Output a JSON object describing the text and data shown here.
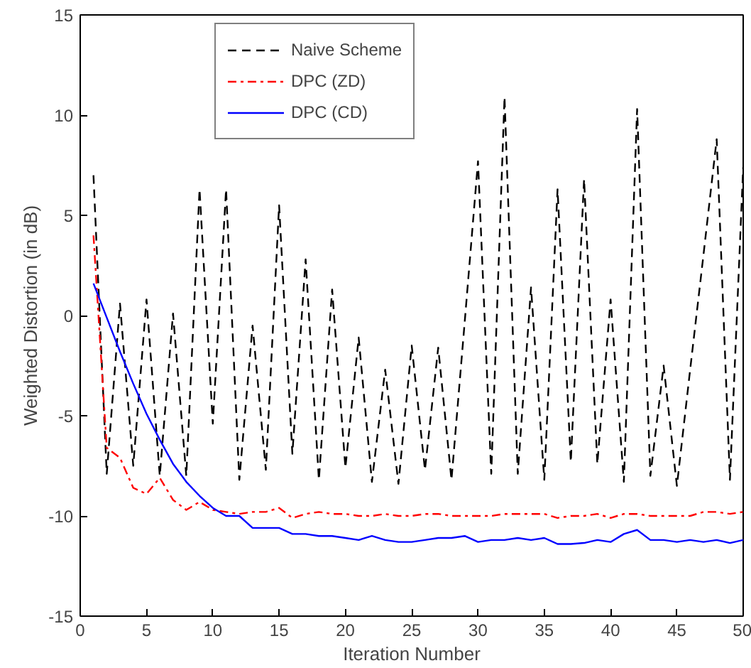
{
  "chart_data": {
    "type": "line",
    "xlabel": "Iteration Number",
    "ylabel": "Weighted Distortion (in dB)",
    "x": [
      1,
      2,
      3,
      4,
      5,
      6,
      7,
      8,
      9,
      10,
      11,
      12,
      13,
      14,
      15,
      16,
      17,
      18,
      19,
      20,
      21,
      22,
      23,
      24,
      25,
      26,
      27,
      28,
      29,
      30,
      31,
      32,
      33,
      34,
      35,
      36,
      37,
      38,
      39,
      40,
      41,
      42,
      43,
      44,
      45,
      46,
      47,
      48,
      49,
      50
    ],
    "xlim": [
      0,
      50
    ],
    "xticks": [
      0,
      5,
      10,
      15,
      20,
      25,
      30,
      35,
      40,
      45,
      50
    ],
    "ylim": [
      -15,
      15
    ],
    "yticks": [
      -15,
      -10,
      -5,
      0,
      5,
      10,
      15
    ],
    "grid": false,
    "legend": "top left",
    "marker": "none",
    "series": [
      {
        "name": "Naive Scheme",
        "color": "#000000",
        "line_style": "dashed",
        "values": [
          7.0,
          -7.9,
          0.6,
          -7.5,
          0.8,
          -8.0,
          0.1,
          -8.0,
          6.3,
          -5.4,
          6.3,
          -8.2,
          -0.5,
          -7.7,
          5.5,
          -6.9,
          2.8,
          -8.2,
          1.3,
          -7.6,
          -1.1,
          -8.3,
          -2.7,
          -8.4,
          -1.5,
          -7.7,
          -1.6,
          -8.2,
          -0.3,
          7.7,
          -7.9,
          10.9,
          -7.9,
          1.4,
          -8.2,
          6.3,
          -7.3,
          6.8,
          -7.4,
          0.8,
          -8.3,
          10.3,
          -8.0,
          -2.5,
          -8.5,
          -2.7,
          3.0,
          8.8,
          -8.2,
          7.4
        ]
      },
      {
        "name": "DPC (ZD)",
        "color": "#ff0000",
        "line_style": "dashdot",
        "values": [
          4.0,
          -6.6,
          -7.1,
          -8.6,
          -8.9,
          -8.1,
          -9.2,
          -9.7,
          -9.3,
          -9.7,
          -9.8,
          -9.9,
          -9.8,
          -9.8,
          -9.6,
          -10.1,
          -9.9,
          -9.8,
          -9.9,
          -9.9,
          -10.0,
          -10.0,
          -9.9,
          -10.0,
          -10.0,
          -9.9,
          -9.9,
          -10.0,
          -10.0,
          -10.0,
          -10.0,
          -9.9,
          -9.9,
          -9.9,
          -9.9,
          -10.1,
          -10.0,
          -10.0,
          -9.9,
          -10.1,
          -9.9,
          -9.9,
          -10.0,
          -10.0,
          -10.0,
          -10.0,
          -9.8,
          -9.8,
          -9.9,
          -9.8
        ]
      },
      {
        "name": "DPC (CD)",
        "color": "#0000ff",
        "line_style": "solid",
        "values": [
          1.6,
          -0.1,
          -1.8,
          -3.4,
          -4.9,
          -6.2,
          -7.4,
          -8.3,
          -9.0,
          -9.6,
          -10.0,
          -10.0,
          -10.6,
          -10.6,
          -10.6,
          -10.9,
          -10.9,
          -11.0,
          -11.0,
          -11.1,
          -11.2,
          -11.0,
          -11.2,
          -11.3,
          -11.3,
          -11.2,
          -11.1,
          -11.1,
          -11.0,
          -11.3,
          -11.2,
          -11.2,
          -11.1,
          -11.2,
          -11.1,
          -11.4,
          -11.4,
          -11.35,
          -11.2,
          -11.3,
          -10.9,
          -10.7,
          -11.2,
          -11.2,
          -11.3,
          -11.2,
          -11.3,
          -11.2,
          -11.35,
          -11.2
        ]
      }
    ]
  }
}
